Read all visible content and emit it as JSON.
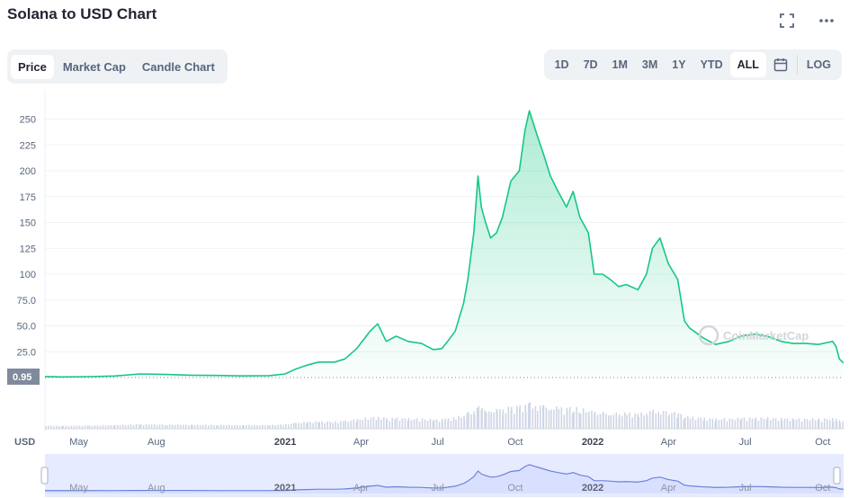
{
  "header": {
    "title": "Solana to USD Chart",
    "fullscreen_icon": "expand-icon",
    "more_icon": "more-horizontal-icon"
  },
  "tabs": [
    {
      "label": "Price",
      "active": true
    },
    {
      "label": "Market Cap",
      "active": false
    },
    {
      "label": "Candle Chart",
      "active": false
    }
  ],
  "ranges": [
    {
      "label": "1D",
      "active": false
    },
    {
      "label": "7D",
      "active": false
    },
    {
      "label": "1M",
      "active": false
    },
    {
      "label": "3M",
      "active": false
    },
    {
      "label": "1Y",
      "active": false
    },
    {
      "label": "YTD",
      "active": false
    },
    {
      "label": "ALL",
      "active": true
    }
  ],
  "calendar_icon": "calendar-icon",
  "log_label": "LOG",
  "currency_label": "USD",
  "current_price_label": "0.95",
  "watermark": "CoinMarketCap",
  "colors": {
    "line": "#16c784",
    "fill_top": "#16c784",
    "volume": "#cfd6e4",
    "navigator_bg": "#e6ebff",
    "navigator_line": "#4e6bd1",
    "current_label_bg": "#808a9d"
  },
  "chart_data": {
    "type": "area",
    "title": "Solana to USD Chart",
    "ylabel": "USD",
    "ylim": [
      0,
      260
    ],
    "y_ticks": [
      "25.0",
      "50.0",
      "75.0",
      "100",
      "125",
      "150",
      "175",
      "200",
      "225",
      "250"
    ],
    "x_ticks": [
      {
        "label": "May",
        "bold": false
      },
      {
        "label": "Aug",
        "bold": false
      },
      {
        "label": "2021",
        "bold": true
      },
      {
        "label": "Apr",
        "bold": false
      },
      {
        "label": "Jul",
        "bold": false
      },
      {
        "label": "Oct",
        "bold": false
      },
      {
        "label": "2022",
        "bold": true
      },
      {
        "label": "Apr",
        "bold": false
      },
      {
        "label": "Jul",
        "bold": false
      },
      {
        "label": "Oct",
        "bold": false
      }
    ],
    "x": [
      "2020-04-10",
      "2020-05-01",
      "2020-06-01",
      "2020-07-01",
      "2020-08-01",
      "2020-09-01",
      "2020-10-01",
      "2020-11-01",
      "2020-12-01",
      "2021-01-01",
      "2021-01-20",
      "2021-02-01",
      "2021-02-15",
      "2021-03-01",
      "2021-03-20",
      "2021-04-01",
      "2021-04-15",
      "2021-05-01",
      "2021-05-10",
      "2021-05-20",
      "2021-06-01",
      "2021-06-15",
      "2021-07-01",
      "2021-07-15",
      "2021-07-25",
      "2021-08-01",
      "2021-08-10",
      "2021-08-20",
      "2021-08-25",
      "2021-09-01",
      "2021-09-06",
      "2021-09-10",
      "2021-09-15",
      "2021-09-21",
      "2021-09-28",
      "2021-10-05",
      "2021-10-15",
      "2021-10-25",
      "2021-11-01",
      "2021-11-06",
      "2021-11-15",
      "2021-11-22",
      "2021-12-01",
      "2021-12-10",
      "2021-12-20",
      "2021-12-28",
      "2022-01-05",
      "2022-01-15",
      "2022-01-22",
      "2022-02-01",
      "2022-02-10",
      "2022-02-20",
      "2022-03-01",
      "2022-03-15",
      "2022-03-25",
      "2022-04-01",
      "2022-04-10",
      "2022-04-20",
      "2022-05-01",
      "2022-05-09",
      "2022-05-15",
      "2022-06-01",
      "2022-06-15",
      "2022-07-01",
      "2022-07-15",
      "2022-08-01",
      "2022-08-15",
      "2022-09-01",
      "2022-09-15",
      "2022-10-01",
      "2022-10-15",
      "2022-11-01",
      "2022-11-05",
      "2022-11-09",
      "2022-11-14"
    ],
    "values": [
      0.95,
      0.6,
      0.9,
      1.5,
      3.5,
      3.0,
      2.3,
      2.0,
      1.6,
      1.8,
      3.5,
      8.0,
      12.0,
      15.0,
      15.0,
      18.0,
      28.0,
      45.0,
      52.0,
      35.0,
      40.0,
      35.0,
      33.0,
      27.0,
      28.0,
      35.0,
      45.0,
      72.0,
      95.0,
      140.0,
      195.0,
      165.0,
      150.0,
      135.0,
      140.0,
      155.0,
      190.0,
      200.0,
      240.0,
      258.0,
      235.0,
      218.0,
      195.0,
      180.0,
      165.0,
      180.0,
      155.0,
      140.0,
      100.0,
      100.0,
      95.0,
      88.0,
      90.0,
      85.0,
      100.0,
      125.0,
      135.0,
      110.0,
      95.0,
      55.0,
      48.0,
      38.0,
      32.0,
      35.0,
      40.0,
      42.0,
      40.0,
      35.0,
      33.0,
      33.0,
      32.0,
      35.0,
      30.0,
      18.0,
      14.0
    ]
  }
}
